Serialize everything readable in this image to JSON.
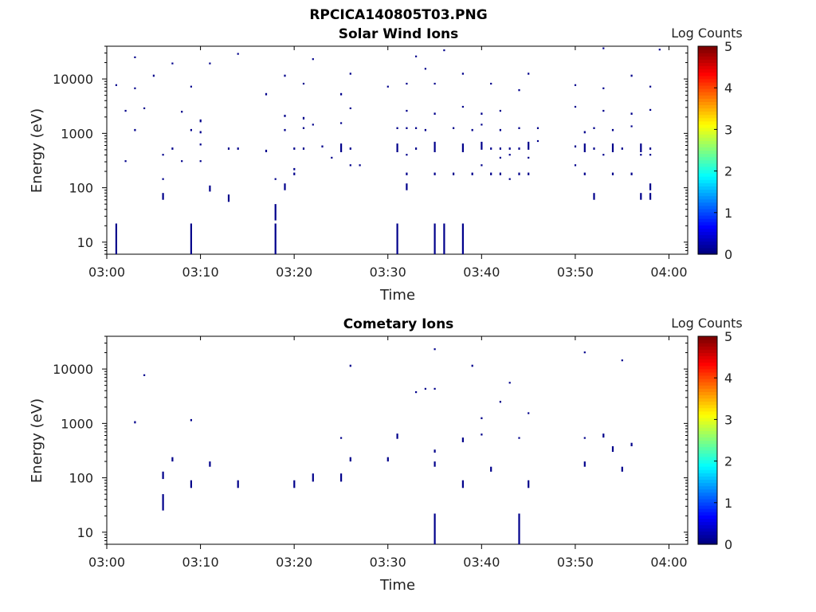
{
  "figure_title": "RPCICA140805T03.PNG",
  "colors": {
    "mark": "#00008b",
    "frame": "#000000"
  },
  "chart_data": [
    {
      "type": "scatter",
      "title": "Solar Wind Ions",
      "xlabel": "Time",
      "ylabel": "Energy (eV)",
      "y_scale": "log",
      "xlim": [
        "03:00",
        "04:02"
      ],
      "ylim": [
        6,
        40000
      ],
      "x_ticks": [
        "03:00",
        "03:10",
        "03:20",
        "03:30",
        "03:40",
        "03:50",
        "04:00"
      ],
      "y_ticks": [
        "10",
        "100",
        "1000",
        "10000"
      ],
      "colorbar": {
        "label": "Log Counts",
        "ticks": [
          "0",
          "1",
          "2",
          "3",
          "4",
          "5"
        ],
        "range": [
          0,
          5
        ],
        "colormap": "jet"
      },
      "points": [
        [
          "03:01",
          6,
          22
        ],
        [
          "03:09",
          6,
          22
        ],
        [
          "03:18",
          6,
          22
        ],
        [
          "03:31",
          6,
          22
        ],
        [
          "03:35",
          6,
          22
        ],
        [
          "03:36",
          6,
          22
        ],
        [
          "03:38",
          6,
          22
        ],
        [
          "03:18",
          25,
          50
        ],
        [
          "03:06",
          60,
          80
        ],
        [
          "03:11",
          85,
          110
        ],
        [
          "03:13",
          55,
          75
        ],
        [
          "03:19",
          90,
          120
        ],
        [
          "03:32",
          90,
          120
        ],
        [
          "03:52",
          60,
          80
        ],
        [
          "03:57",
          60,
          80
        ],
        [
          "03:58",
          90,
          120
        ],
        [
          "03:58",
          60,
          80
        ],
        [
          "03:06",
          140,
          150
        ],
        [
          "03:18",
          140,
          150
        ],
        [
          "03:20",
          170,
          190
        ],
        [
          "03:20",
          210,
          230
        ],
        [
          "03:32",
          170,
          190
        ],
        [
          "03:35",
          170,
          190
        ],
        [
          "03:37",
          170,
          190
        ],
        [
          "03:39",
          170,
          190
        ],
        [
          "03:41",
          170,
          190
        ],
        [
          "03:42",
          170,
          190
        ],
        [
          "03:43",
          140,
          150
        ],
        [
          "03:44",
          170,
          190
        ],
        [
          "03:45",
          170,
          190
        ],
        [
          "03:50",
          250,
          270
        ],
        [
          "03:51",
          170,
          190
        ],
        [
          "03:54",
          170,
          190
        ],
        [
          "03:56",
          170,
          190
        ],
        [
          "03:02",
          300,
          320
        ],
        [
          "03:06",
          400,
          420
        ],
        [
          "03:08",
          300,
          320
        ],
        [
          "03:10",
          300,
          320
        ],
        [
          "03:24",
          350,
          370
        ],
        [
          "03:26",
          250,
          270
        ],
        [
          "03:27",
          250,
          270
        ],
        [
          "03:32",
          400,
          420
        ],
        [
          "03:40",
          250,
          270
        ],
        [
          "03:42",
          350,
          370
        ],
        [
          "03:43",
          400,
          420
        ],
        [
          "03:45",
          350,
          370
        ],
        [
          "03:53",
          400,
          420
        ],
        [
          "03:57",
          400,
          420
        ],
        [
          "03:58",
          400,
          420
        ],
        [
          "03:07",
          500,
          550
        ],
        [
          "03:10",
          600,
          650
        ],
        [
          "03:13",
          500,
          550
        ],
        [
          "03:14",
          500,
          550
        ],
        [
          "03:17",
          450,
          500
        ],
        [
          "03:20",
          500,
          550
        ],
        [
          "03:21",
          500,
          550
        ],
        [
          "03:23",
          550,
          600
        ],
        [
          "03:25",
          450,
          650
        ],
        [
          "03:26",
          500,
          550
        ],
        [
          "03:31",
          450,
          650
        ],
        [
          "03:33",
          500,
          550
        ],
        [
          "03:35",
          450,
          700
        ],
        [
          "03:38",
          450,
          650
        ],
        [
          "03:40",
          500,
          700
        ],
        [
          "03:41",
          500,
          550
        ],
        [
          "03:42",
          500,
          550
        ],
        [
          "03:43",
          500,
          550
        ],
        [
          "03:44",
          500,
          550
        ],
        [
          "03:45",
          500,
          700
        ],
        [
          "03:46",
          700,
          750
        ],
        [
          "03:50",
          550,
          600
        ],
        [
          "03:51",
          450,
          650
        ],
        [
          "03:52",
          500,
          550
        ],
        [
          "03:54",
          450,
          650
        ],
        [
          "03:55",
          500,
          550
        ],
        [
          "03:57",
          450,
          650
        ],
        [
          "03:58",
          500,
          550
        ],
        [
          "03:03",
          1100,
          1200
        ],
        [
          "03:09",
          1100,
          1200
        ],
        [
          "03:10",
          1000,
          1100
        ],
        [
          "03:19",
          1100,
          1200
        ],
        [
          "03:21",
          1200,
          1300
        ],
        [
          "03:22",
          1400,
          1500
        ],
        [
          "03:25",
          1500,
          1600
        ],
        [
          "03:31",
          1200,
          1300
        ],
        [
          "03:32",
          1200,
          1300
        ],
        [
          "03:33",
          1200,
          1300
        ],
        [
          "03:34",
          1100,
          1200
        ],
        [
          "03:37",
          1200,
          1300
        ],
        [
          "03:39",
          1100,
          1200
        ],
        [
          "03:40",
          1400,
          1500
        ],
        [
          "03:42",
          1100,
          1200
        ],
        [
          "03:44",
          1200,
          1300
        ],
        [
          "03:46",
          1200,
          1300
        ],
        [
          "03:51",
          1000,
          1100
        ],
        [
          "03:52",
          1200,
          1300
        ],
        [
          "03:54",
          1100,
          1200
        ],
        [
          "03:56",
          1300,
          1400
        ],
        [
          "03:02",
          2500,
          2700
        ],
        [
          "03:04",
          2800,
          3000
        ],
        [
          "03:08",
          2400,
          2600
        ],
        [
          "03:10",
          1600,
          1800
        ],
        [
          "03:19",
          2000,
          2200
        ],
        [
          "03:21",
          1800,
          2000
        ],
        [
          "03:26",
          2800,
          3000
        ],
        [
          "03:32",
          2500,
          2700
        ],
        [
          "03:35",
          2200,
          2400
        ],
        [
          "03:38",
          3000,
          3200
        ],
        [
          "03:40",
          2200,
          2400
        ],
        [
          "03:42",
          2500,
          2700
        ],
        [
          "03:50",
          3000,
          3200
        ],
        [
          "03:53",
          2500,
          2700
        ],
        [
          "03:56",
          2200,
          2400
        ],
        [
          "03:58",
          2600,
          2800
        ],
        [
          "03:01",
          7500,
          8000
        ],
        [
          "03:03",
          6500,
          7000
        ],
        [
          "03:05",
          11000,
          12000
        ],
        [
          "03:07",
          19000,
          20000
        ],
        [
          "03:09",
          7000,
          7500
        ],
        [
          "03:11",
          19000,
          20000
        ],
        [
          "03:17",
          5000,
          5500
        ],
        [
          "03:19",
          11000,
          12000
        ],
        [
          "03:21",
          8000,
          8500
        ],
        [
          "03:25",
          5000,
          5500
        ],
        [
          "03:26",
          12000,
          13000
        ],
        [
          "03:30",
          7000,
          7500
        ],
        [
          "03:32",
          8000,
          8500
        ],
        [
          "03:34",
          15000,
          16000
        ],
        [
          "03:35",
          8000,
          8500
        ],
        [
          "03:38",
          12000,
          13000
        ],
        [
          "03:41",
          8000,
          8500
        ],
        [
          "03:44",
          6000,
          6500
        ],
        [
          "03:45",
          12000,
          13000
        ],
        [
          "03:50",
          7500,
          8000
        ],
        [
          "03:53",
          6500,
          7000
        ],
        [
          "03:56",
          11000,
          12000
        ],
        [
          "03:58",
          7000,
          7500
        ],
        [
          "03:03",
          25000,
          26000
        ],
        [
          "03:14",
          29000,
          30000
        ],
        [
          "03:22",
          23000,
          24000
        ],
        [
          "03:33",
          26000,
          27000
        ],
        [
          "03:36",
          34000,
          35000
        ],
        [
          "03:53",
          37000,
          38000
        ],
        [
          "03:59",
          35000,
          36000
        ]
      ]
    },
    {
      "type": "scatter",
      "title": "Cometary Ions",
      "xlabel": "Time",
      "ylabel": "Energy (eV)",
      "y_scale": "log",
      "xlim": [
        "03:00",
        "04:02"
      ],
      "ylim": [
        6,
        40000
      ],
      "x_ticks": [
        "03:00",
        "03:10",
        "03:20",
        "03:30",
        "03:40",
        "03:50",
        "04:00"
      ],
      "y_ticks": [
        "10",
        "100",
        "1000",
        "10000"
      ],
      "colorbar": {
        "label": "Log Counts",
        "ticks": [
          "0",
          "1",
          "2",
          "3",
          "4",
          "5"
        ],
        "range": [
          0,
          5
        ],
        "colormap": "jet"
      },
      "points": [
        [
          "03:35",
          6,
          22
        ],
        [
          "03:44",
          6,
          22
        ],
        [
          "03:06",
          25,
          50
        ],
        [
          "03:06",
          95,
          130
        ],
        [
          "03:07",
          200,
          240
        ],
        [
          "03:09",
          65,
          90
        ],
        [
          "03:11",
          160,
          200
        ],
        [
          "03:14",
          65,
          90
        ],
        [
          "03:20",
          65,
          90
        ],
        [
          "03:22",
          85,
          120
        ],
        [
          "03:25",
          85,
          120
        ],
        [
          "03:26",
          200,
          240
        ],
        [
          "03:30",
          200,
          240
        ],
        [
          "03:31",
          520,
          650
        ],
        [
          "03:35",
          160,
          200
        ],
        [
          "03:35",
          290,
          330
        ],
        [
          "03:38",
          65,
          90
        ],
        [
          "03:38",
          450,
          550
        ],
        [
          "03:41",
          130,
          160
        ],
        [
          "03:45",
          65,
          90
        ],
        [
          "03:51",
          160,
          200
        ],
        [
          "03:53",
          550,
          650
        ],
        [
          "03:54",
          300,
          380
        ],
        [
          "03:55",
          130,
          160
        ],
        [
          "03:56",
          380,
          440
        ],
        [
          "03:03",
          1000,
          1100
        ],
        [
          "03:04",
          7500,
          8000
        ],
        [
          "03:09",
          1100,
          1200
        ],
        [
          "03:25",
          520,
          560
        ],
        [
          "03:26",
          11000,
          12000
        ],
        [
          "03:33",
          3700,
          3900
        ],
        [
          "03:34",
          4300,
          4500
        ],
        [
          "03:35",
          4300,
          4500
        ],
        [
          "03:35",
          23000,
          24000
        ],
        [
          "03:39",
          11000,
          12000
        ],
        [
          "03:40",
          1200,
          1300
        ],
        [
          "03:40",
          600,
          650
        ],
        [
          "03:42",
          2400,
          2600
        ],
        [
          "03:43",
          5500,
          5800
        ],
        [
          "03:44",
          520,
          560
        ],
        [
          "03:45",
          1500,
          1600
        ],
        [
          "03:51",
          20000,
          21000
        ],
        [
          "03:51",
          520,
          560
        ],
        [
          "03:55",
          14000,
          15000
        ]
      ]
    }
  ]
}
